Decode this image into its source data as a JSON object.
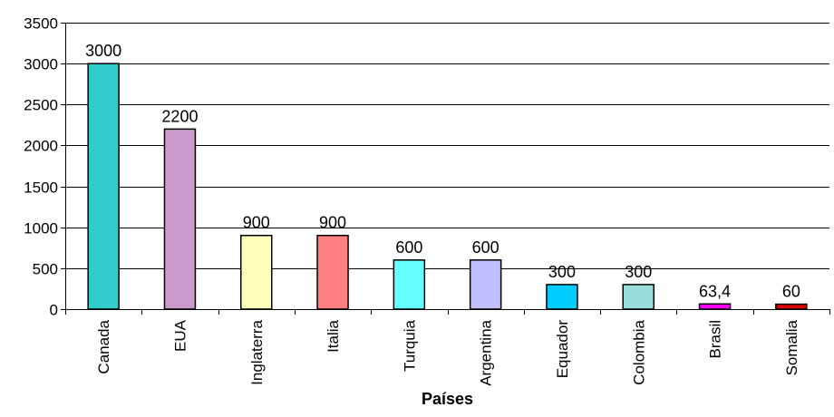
{
  "chart_data": {
    "type": "bar",
    "title": "",
    "xlabel": "Países",
    "ylabel": "",
    "categories": [
      "Canada",
      "EUA",
      "Inglaterra",
      "Italia",
      "Turquia",
      "Argentina",
      "Equador",
      "Colombia",
      "Brasil",
      "Somalia"
    ],
    "values": [
      3000,
      2200,
      900,
      900,
      600,
      600,
      300,
      300,
      63.4,
      60
    ],
    "value_labels": [
      "3000",
      "2200",
      "900",
      "900",
      "600",
      "600",
      "300",
      "300",
      "63,4",
      "60"
    ],
    "bar_colors": [
      "#33CCCC",
      "#CC99CC",
      "#FFFFBB",
      "#FF8080",
      "#66FFFF",
      "#C0C0FF",
      "#00CCFF",
      "#99DDDD",
      "#FF00FF",
      "#DD0000"
    ],
    "ylim": [
      0,
      3500
    ],
    "yticks": [
      0,
      500,
      1000,
      1500,
      2000,
      2500,
      3000,
      3500
    ],
    "ytick_labels": [
      "0",
      "500",
      "1000",
      "1500",
      "2000",
      "2500",
      "3000",
      "3500"
    ],
    "grid": true,
    "legend": false
  }
}
